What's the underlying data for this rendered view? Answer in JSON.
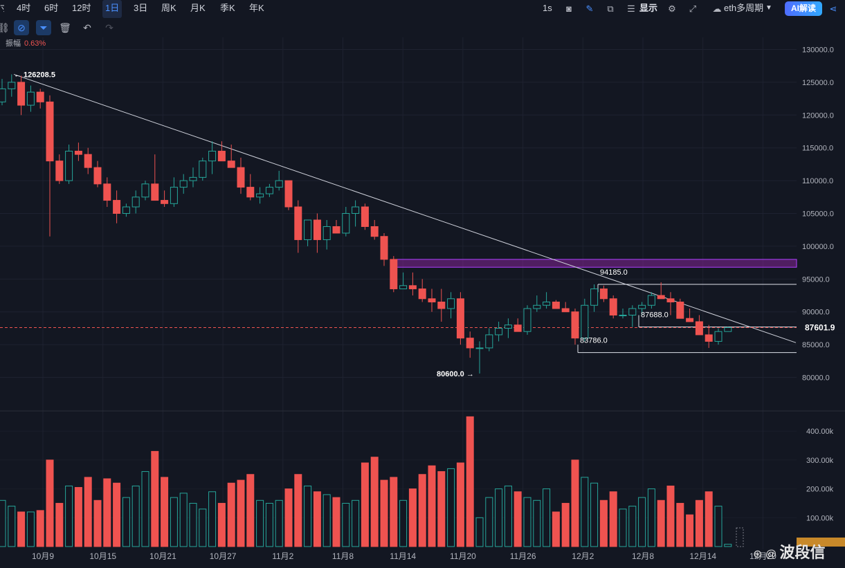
{
  "toolbar": {
    "timeframes": [
      "4时",
      "6时",
      "12时",
      "1日",
      "3日",
      "周K",
      "月K",
      "季K",
      "年K"
    ],
    "active_timeframe": "1日",
    "left_cut_label": "寸",
    "interval_label": "1s",
    "display_label": "显示",
    "symbol_label": "eth多周期",
    "ai_label": "AI解读"
  },
  "status": {
    "amplitude_label": "振幅",
    "amplitude_value": "0.63%"
  },
  "colors": {
    "up": "#26a69a",
    "down": "#ef5350",
    "accent": "#2962ff",
    "zone": "#9c27b0"
  },
  "price_axis": {
    "ticks": [
      "130000.0",
      "125000.0",
      "120000.0",
      "115000.0",
      "110000.0",
      "105000.0",
      "100000.0",
      "95000.0",
      "90000.0",
      "85000.0",
      "80000.0"
    ],
    "current_price": "87601.9"
  },
  "volume_axis": {
    "ticks": [
      "400.00k",
      "300.00k",
      "200.00k",
      "100.00k"
    ]
  },
  "annotations": {
    "high": "126208.5",
    "low": "80600.0",
    "level_1": "94185.0",
    "level_2": "87688.0",
    "level_3": "83786.0"
  },
  "watermark": "波段信",
  "chart_data": {
    "type": "candlestick",
    "x": [
      "10月9",
      "10月15",
      "10月21",
      "10月27",
      "11月2",
      "11月8",
      "11月14",
      "11月20",
      "11月26",
      "12月2",
      "12月8",
      "12月14",
      "12月20"
    ],
    "ylim": [
      77000,
      131000
    ],
    "volume_ylim": [
      0,
      470000
    ],
    "candles": [
      [
        122000,
        125500,
        121500,
        124000,
        160000
      ],
      [
        124000,
        126200,
        122800,
        125000,
        140000
      ],
      [
        125000,
        126000,
        120000,
        121500,
        120000
      ],
      [
        121500,
        124500,
        120500,
        123500,
        120000
      ],
      [
        123500,
        124000,
        121000,
        122000,
        125000
      ],
      [
        122000,
        123000,
        101500,
        113000,
        300000
      ],
      [
        113000,
        114000,
        109500,
        110000,
        150000
      ],
      [
        110000,
        115500,
        109500,
        114500,
        210000
      ],
      [
        114500,
        115800,
        113000,
        114000,
        205000
      ],
      [
        114000,
        115000,
        111000,
        112000,
        240000
      ],
      [
        112000,
        113000,
        109000,
        109500,
        160000
      ],
      [
        109500,
        110500,
        106000,
        107000,
        235000
      ],
      [
        107000,
        108500,
        103500,
        105000,
        220000
      ],
      [
        105000,
        106500,
        104500,
        106000,
        170000
      ],
      [
        106000,
        108500,
        105000,
        107500,
        210000
      ],
      [
        107500,
        110000,
        107000,
        109500,
        260000
      ],
      [
        109500,
        114000,
        107500,
        107000,
        330000
      ],
      [
        107000,
        108500,
        106000,
        106500,
        240000
      ],
      [
        106500,
        110500,
        106000,
        109000,
        170000
      ],
      [
        109000,
        111000,
        108000,
        110000,
        185000
      ],
      [
        110000,
        112000,
        109000,
        110500,
        150000
      ],
      [
        110500,
        113500,
        110000,
        113000,
        130000
      ],
      [
        113000,
        116000,
        111000,
        114500,
        190000
      ],
      [
        114500,
        116000,
        113000,
        113000,
        150000
      ],
      [
        113000,
        115500,
        112000,
        112000,
        220000
      ],
      [
        112000,
        113500,
        108000,
        109000,
        230000
      ],
      [
        109000,
        111000,
        107000,
        107500,
        250000
      ],
      [
        107500,
        109000,
        106500,
        108000,
        160000
      ],
      [
        108000,
        109500,
        107500,
        109000,
        150000
      ],
      [
        109000,
        111500,
        108500,
        110000,
        160000
      ],
      [
        110000,
        110000,
        105500,
        106000,
        200000
      ],
      [
        106000,
        107000,
        99000,
        101000,
        250000
      ],
      [
        101000,
        104000,
        100000,
        104000,
        210000
      ],
      [
        104000,
        105000,
        99000,
        101000,
        190000
      ],
      [
        101000,
        104000,
        99500,
        103000,
        180000
      ],
      [
        103000,
        104000,
        102000,
        102000,
        170000
      ],
      [
        102000,
        106000,
        101500,
        105000,
        150000
      ],
      [
        105000,
        107000,
        103000,
        106000,
        160000
      ],
      [
        106000,
        106500,
        102500,
        103000,
        290000
      ],
      [
        103000,
        104000,
        101000,
        101500,
        310000
      ],
      [
        101500,
        102000,
        97000,
        98000,
        230000
      ],
      [
        98000,
        98500,
        93000,
        93500,
        240000
      ],
      [
        93500,
        96000,
        94000,
        94000,
        160000
      ],
      [
        94000,
        96000,
        92500,
        93500,
        200000
      ],
      [
        93500,
        95000,
        91500,
        92000,
        250000
      ],
      [
        92000,
        93500,
        90000,
        91500,
        280000
      ],
      [
        91500,
        93500,
        88500,
        90500,
        260000
      ],
      [
        90500,
        93000,
        89000,
        92000,
        270000
      ],
      [
        92000,
        93000,
        85000,
        86000,
        290000
      ],
      [
        86000,
        87000,
        83000,
        84500,
        450000
      ],
      [
        84500,
        85500,
        80600,
        84500,
        100000
      ],
      [
        84500,
        87500,
        84000,
        86500,
        170000
      ],
      [
        86500,
        88500,
        85500,
        87500,
        200000
      ],
      [
        87500,
        89000,
        86000,
        88000,
        210000
      ],
      [
        88000,
        89000,
        87000,
        87000,
        190000
      ],
      [
        87000,
        91000,
        86500,
        90500,
        170000
      ],
      [
        90500,
        92500,
        90000,
        91000,
        160000
      ],
      [
        91000,
        93000,
        90500,
        91500,
        200000
      ],
      [
        91500,
        91800,
        90500,
        90500,
        120000
      ],
      [
        90500,
        91500,
        90000,
        90000,
        150000
      ],
      [
        90000,
        90500,
        85000,
        86000,
        300000
      ],
      [
        86000,
        92000,
        85500,
        91000,
        240000
      ],
      [
        91000,
        94185,
        90000,
        93500,
        220000
      ],
      [
        93500,
        94000,
        91500,
        92000,
        160000
      ],
      [
        92000,
        92500,
        89000,
        89500,
        190000
      ],
      [
        89500,
        90500,
        89000,
        89500,
        130000
      ],
      [
        89500,
        91000,
        87688,
        90500,
        140000
      ],
      [
        90500,
        91500,
        89500,
        91000,
        170000
      ],
      [
        91000,
        93000,
        90500,
        92500,
        200000
      ],
      [
        92500,
        94500,
        92000,
        92000,
        160000
      ],
      [
        92000,
        93000,
        89500,
        91500,
        210000
      ],
      [
        91500,
        92000,
        89000,
        89000,
        150000
      ],
      [
        89000,
        90500,
        88500,
        88500,
        110000
      ],
      [
        88500,
        89500,
        86500,
        86500,
        160000
      ],
      [
        86500,
        88000,
        84500,
        85500,
        190000
      ],
      [
        85500,
        87500,
        85000,
        87000,
        140000
      ],
      [
        87000,
        87700,
        87000,
        87601.9,
        8000
      ]
    ]
  }
}
